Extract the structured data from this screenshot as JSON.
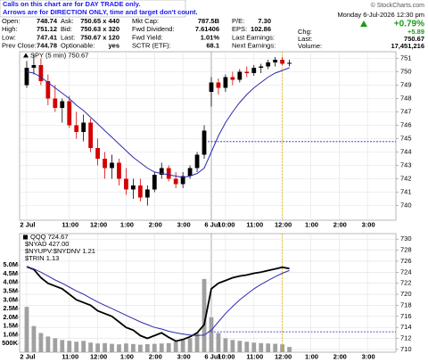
{
  "header": {
    "notes": [
      "Calls on this chart are for DAY TRADE only.",
      "Arrows are for DIRECTION ONLY, time and target don't count."
    ],
    "copyright": "© StockCharts.com",
    "date": "Monday 6-Jul-2026 12:30 pm",
    "fields": [
      [
        {
          "label": "Open:",
          "value": "748.74"
        },
        {
          "label": "Ask:",
          "value": "750.65 x 440"
        },
        {
          "label": "Mkt Cap:",
          "value": "787.5B"
        },
        {
          "label": "P/E:",
          "value": "7.30"
        }
      ],
      [
        {
          "label": "High:",
          "value": "751.12"
        },
        {
          "label": "Bid:",
          "value": "750.63 x 320"
        },
        {
          "label": "Fwd Dividend:",
          "value": "7.61406"
        },
        {
          "label": "EPS:",
          "value": "102.86"
        }
      ],
      [
        {
          "label": "Low:",
          "value": "747.41"
        },
        {
          "label": "Last:",
          "value": "750.67 x 120"
        },
        {
          "label": "Fwd Yield:",
          "value": "1.01%"
        },
        {
          "label": "Last Earnings:"
        }
      ],
      [
        {
          "label": "Prev Close:",
          "value": "744.78"
        },
        {
          "label": "Optionable:",
          "value": "yes"
        },
        {
          "label": "SCTR (ETF):",
          "value": "68.1"
        },
        {
          "label": "Next Earnings:"
        }
      ]
    ],
    "change_pct": "+0.79%",
    "change": {
      "label": "Chg:",
      "value": "+5.89"
    },
    "last": {
      "label": "Last:",
      "value": "750.67"
    },
    "volume": {
      "label": "Volume:",
      "value": "17,451,216"
    }
  },
  "chart_data": [
    {
      "type": "candlestick",
      "legend": "SPY (5 min) 750.67",
      "grid": true,
      "up_color": "#000000",
      "down_color": "#d40000",
      "x": [
        0,
        1,
        2,
        3,
        4,
        5,
        6,
        7,
        8,
        9,
        10,
        11,
        12,
        13,
        14,
        15,
        16,
        17,
        18,
        19,
        20,
        21,
        22,
        23,
        24,
        25,
        26,
        27,
        28,
        29,
        30,
        31,
        32,
        33,
        34,
        35,
        36,
        37
      ],
      "open": [
        749.0,
        750.3,
        750.5,
        749.3,
        748.0,
        747.3,
        747.8,
        746.0,
        745.5,
        746.2,
        744.3,
        743.5,
        742.8,
        743.2,
        742.0,
        741.2,
        741.5,
        740.6,
        741.2,
        742.3,
        742.8,
        742.0,
        741.6,
        742.2,
        742.8,
        743.8,
        748.5,
        749.2,
        748.8,
        749.6,
        749.4,
        750.0,
        749.9,
        750.3,
        750.4,
        750.7,
        750.9,
        750.6
      ],
      "high": [
        750.8,
        751.3,
        751.0,
        749.8,
        749.0,
        748.0,
        748.2,
        747.0,
        746.8,
        746.5,
        745.0,
        744.0,
        743.8,
        743.5,
        742.8,
        742.0,
        742.0,
        741.5,
        742.5,
        743.2,
        743.0,
        742.5,
        742.5,
        743.0,
        744.0,
        746.0,
        749.6,
        749.5,
        749.8,
        750.0,
        750.2,
        750.4,
        750.5,
        750.6,
        750.9,
        751.1,
        751.1,
        750.9
      ],
      "low": [
        748.8,
        749.8,
        749.0,
        747.5,
        747.0,
        746.2,
        745.8,
        745.0,
        744.8,
        744.0,
        743.0,
        742.0,
        742.0,
        741.5,
        740.8,
        740.5,
        740.3,
        740.0,
        741.0,
        742.0,
        741.8,
        741.3,
        741.3,
        742.0,
        742.5,
        743.5,
        747.4,
        748.3,
        748.5,
        749.0,
        749.2,
        749.6,
        749.7,
        749.9,
        750.2,
        750.4,
        750.5,
        750.4
      ],
      "close": [
        750.3,
        750.5,
        749.3,
        748.0,
        747.3,
        747.8,
        746.0,
        745.5,
        746.2,
        744.3,
        743.5,
        742.8,
        743.2,
        742.0,
        741.2,
        741.5,
        740.6,
        741.2,
        742.3,
        742.8,
        742.0,
        741.6,
        742.2,
        742.8,
        743.8,
        745.6,
        749.2,
        748.8,
        749.6,
        749.4,
        750.0,
        749.9,
        750.3,
        750.4,
        750.7,
        750.9,
        750.6,
        750.67
      ],
      "ma": {
        "color": "#2b2bb0",
        "values": [
          750.0,
          749.9,
          749.6,
          749.2,
          748.8,
          748.4,
          748.0,
          747.5,
          747.1,
          746.6,
          746.1,
          745.6,
          745.1,
          744.6,
          744.1,
          743.6,
          743.2,
          742.8,
          742.5,
          742.4,
          742.3,
          742.2,
          742.1,
          742.2,
          742.4,
          742.8,
          744.0,
          745.2,
          746.2,
          747.0,
          747.7,
          748.3,
          748.8,
          749.2,
          749.6,
          749.9,
          750.1,
          750.3
        ]
      },
      "prev_close_line": 744.78,
      "xlim": [
        -1,
        52
      ],
      "xticks": [
        {
          "value": 0,
          "label": "2 Jul"
        },
        {
          "value": 6,
          "label": "11:00"
        },
        {
          "value": 10,
          "label": "12:00"
        },
        {
          "value": 14,
          "label": "1:00"
        },
        {
          "value": 18,
          "label": "2:00"
        },
        {
          "value": 22,
          "label": "3:00"
        },
        {
          "value": 26,
          "label": "6 Jul"
        },
        {
          "value": 28,
          "label": "10:00"
        },
        {
          "value": 32,
          "label": "11:00"
        },
        {
          "value": 36,
          "label": "12:00"
        },
        {
          "value": 40,
          "label": "1:00"
        },
        {
          "value": 44,
          "label": "2:00"
        },
        {
          "value": 48,
          "label": "3:00"
        }
      ],
      "ylim": [
        738.9,
        751.5
      ],
      "yticks": [
        740,
        741,
        742,
        743,
        744,
        745,
        746,
        747,
        748,
        749,
        750,
        751
      ]
    },
    {
      "type": "line",
      "grid": true,
      "x": [
        0,
        1,
        2,
        3,
        4,
        5,
        6,
        7,
        8,
        9,
        10,
        11,
        12,
        13,
        14,
        15,
        16,
        17,
        18,
        19,
        20,
        21,
        22,
        23,
        24,
        25,
        26,
        27,
        28,
        29,
        30,
        31,
        32,
        33,
        34,
        35,
        36,
        37
      ],
      "series": [
        {
          "name": "QQQ 724.67",
          "axis": "y2",
          "color": "#000000",
          "values": [
            725,
            724.5,
            723,
            722,
            721.5,
            721,
            720,
            719,
            718.5,
            718,
            717,
            716.5,
            716,
            715,
            714,
            713.5,
            712.5,
            712,
            712.5,
            713,
            712.2,
            711.5,
            711.8,
            712.3,
            713,
            714.5,
            721,
            722,
            722.5,
            723,
            723.3,
            723.5,
            723.8,
            724,
            724.3,
            724.6,
            724.9,
            724.67
          ]
        }
      ],
      "legend_extra": [
        "$NYAD 427.00",
        "$NYUPV:$NYDNV 1.21",
        "$TRIN 1.13"
      ],
      "ma": {
        "color": "#2b2bb0",
        "values": [
          725,
          724.6,
          724,
          723.3,
          722.6,
          722,
          721.3,
          720.6,
          720,
          719.3,
          718.6,
          718,
          717.4,
          716.8,
          716.2,
          715.6,
          715,
          714.5,
          714,
          713.7,
          713.3,
          713,
          712.8,
          712.6,
          712.5,
          712.6,
          713.5,
          715,
          716.5,
          717.8,
          719,
          720,
          721,
          721.8,
          722.5,
          723.2,
          723.8,
          724.3
        ]
      },
      "volume": {
        "color": "#a0a0a0",
        "values": [
          2600000,
          1500000,
          1100000,
          900000,
          800000,
          700000,
          650000,
          600000,
          650000,
          550000,
          500000,
          520000,
          480000,
          450000,
          500000,
          470000,
          430000,
          460000,
          480000,
          500000,
          520000,
          600000,
          700000,
          800000,
          1100000,
          4200000,
          2000000,
          1100000,
          800000,
          700000,
          650000,
          600000,
          550000,
          520000,
          500000,
          480000,
          450000,
          300000
        ]
      },
      "prev_close_line": 713.2,
      "xlim": [
        -1,
        52
      ],
      "xticks": [
        {
          "value": 0,
          "label": "2 Jul"
        },
        {
          "value": 6,
          "label": "11:00"
        },
        {
          "value": 10,
          "label": "12:00"
        },
        {
          "value": 14,
          "label": "1:00"
        },
        {
          "value": 18,
          "label": "2:00"
        },
        {
          "value": 22,
          "label": "3:00"
        },
        {
          "value": 26,
          "label": "6 Jul"
        },
        {
          "value": 28,
          "label": "10:00"
        },
        {
          "value": 32,
          "label": "11:00"
        },
        {
          "value": 36,
          "label": "12:00"
        },
        {
          "value": 40,
          "label": "1:00"
        },
        {
          "value": 44,
          "label": "2:00"
        },
        {
          "value": 48,
          "label": "3:00"
        }
      ],
      "ylim": [
        0,
        6800000
      ],
      "yticks": [
        {
          "value": 500000,
          "label": "500K"
        },
        {
          "value": 1000000,
          "label": "1.0M"
        },
        {
          "value": 1500000,
          "label": "1.5M"
        },
        {
          "value": 2000000,
          "label": "2.0M"
        },
        {
          "value": 2500000,
          "label": "2.5M"
        },
        {
          "value": 3000000,
          "label": "3.0M"
        },
        {
          "value": 3500000,
          "label": "3.5M"
        },
        {
          "value": 4000000,
          "label": "4.0M"
        },
        {
          "value": 4500000,
          "label": "4.5M"
        },
        {
          "value": 5000000,
          "label": "5.0M"
        }
      ],
      "y2lim": [
        709.5,
        731
      ],
      "y2ticks": [
        710,
        712,
        714,
        716,
        718,
        720,
        722,
        724,
        726,
        728,
        730
      ]
    }
  ]
}
